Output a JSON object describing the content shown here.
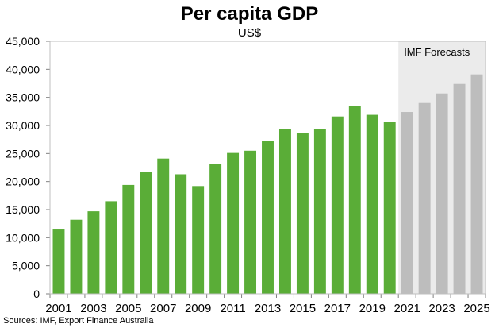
{
  "title": "Per capita GDP",
  "subtitle": "US$",
  "source": "Sources: IMF, Export Finance Australia",
  "colors": {
    "actual": "#5aad37",
    "forecast": "#bdbdbd",
    "forecast_shade": "#ebebeb"
  },
  "chart_data": {
    "type": "bar",
    "categories": [
      "2001",
      "2002",
      "2003",
      "2004",
      "2005",
      "2006",
      "2007",
      "2008",
      "2009",
      "2010",
      "2011",
      "2012",
      "2013",
      "2014",
      "2015",
      "2016",
      "2017",
      "2018",
      "2019",
      "2020",
      "2021",
      "2022",
      "2023",
      "2024",
      "2025"
    ],
    "values": [
      11600,
      13200,
      14700,
      16500,
      19400,
      21700,
      24100,
      21300,
      19200,
      23100,
      25100,
      25500,
      27200,
      29300,
      28700,
      29300,
      31600,
      33400,
      31900,
      30600,
      32400,
      34000,
      35700,
      37400,
      39100
    ],
    "forecast_from": "2021",
    "forecast_label": "IMF Forecasts",
    "x_tick_labels": [
      "2001",
      "2003",
      "2005",
      "2007",
      "2009",
      "2011",
      "2013",
      "2015",
      "2017",
      "2019",
      "2021",
      "2023",
      "2025"
    ],
    "y_tick_labels": [
      "0",
      "5,000",
      "10,000",
      "15,000",
      "20,000",
      "25,000",
      "30,000",
      "35,000",
      "40,000",
      "45,000"
    ],
    "ylim": [
      0,
      45000
    ],
    "y_step": 5000,
    "grid": false,
    "xlabel": "",
    "ylabel": ""
  }
}
